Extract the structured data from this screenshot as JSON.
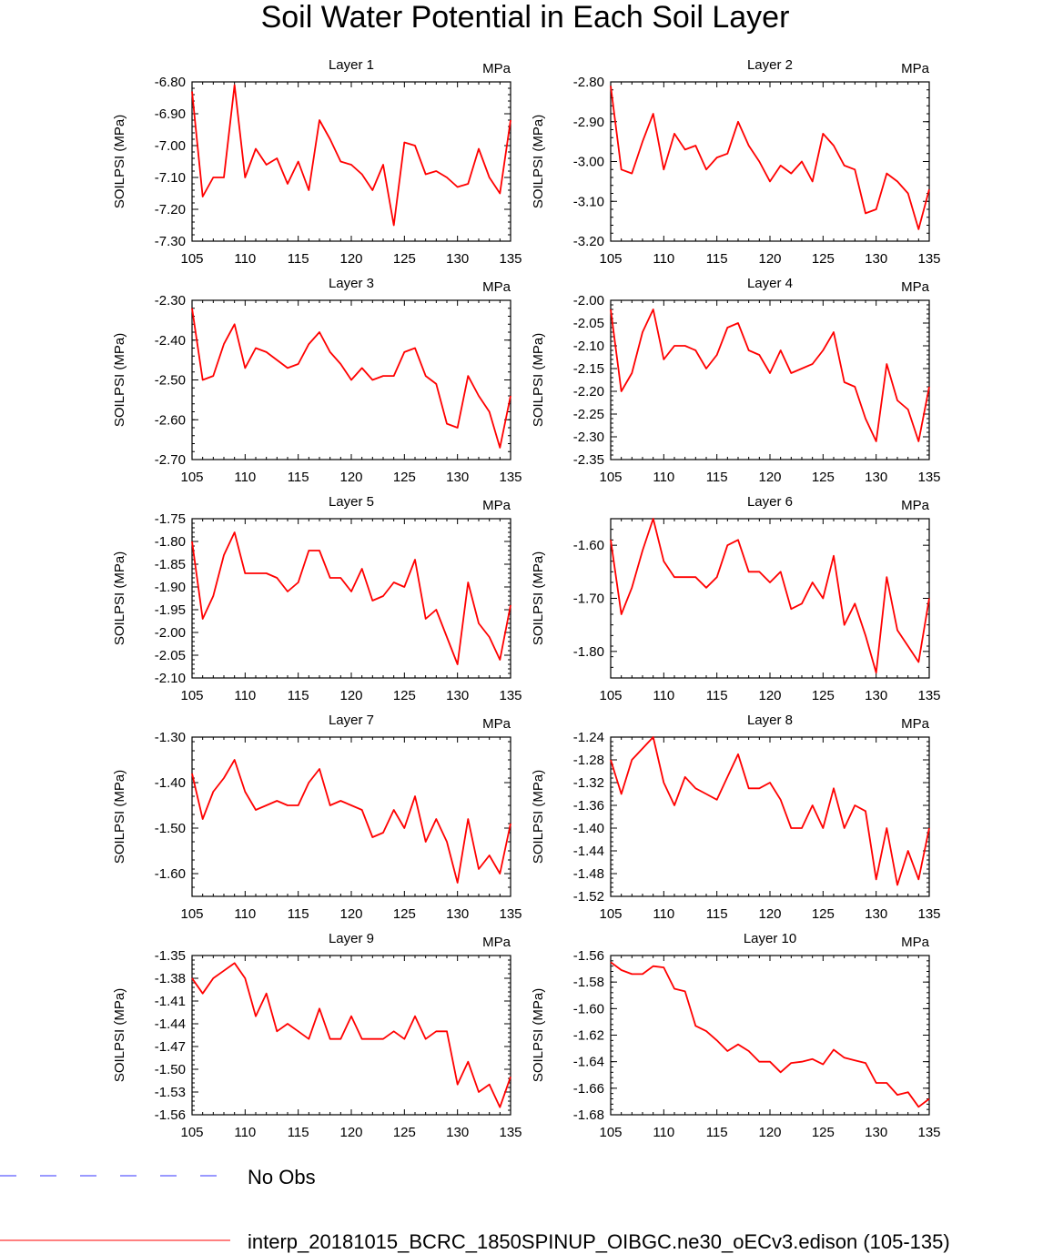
{
  "title": "Soil Water Potential in Each Soil Layer",
  "legend": [
    {
      "label": "No Obs",
      "color": "#3333ff",
      "style": "dashed"
    },
    {
      "label": "interp_20181015_BCRC_1850SPINUP_OIBGC.ne30_oECv3.edison (105-135)",
      "color": "#ff0000",
      "style": "solid"
    }
  ],
  "chart_data": [
    {
      "type": "line",
      "title": "Layer 1",
      "units": "MPa",
      "ylabel": "SOILPSI  (MPa)",
      "xlim": [
        105,
        135
      ],
      "xticks": [
        "105",
        "110",
        "115",
        "120",
        "125",
        "130",
        "135"
      ],
      "ylim": [
        -7.3,
        -6.8
      ],
      "yticks": [
        "-6.80",
        "-6.90",
        "-7.00",
        "-7.10",
        "-7.20",
        "-7.30"
      ],
      "x": [
        105,
        106,
        107,
        108,
        109,
        110,
        111,
        112,
        113,
        114,
        115,
        116,
        117,
        118,
        119,
        120,
        121,
        122,
        123,
        124,
        125,
        126,
        127,
        128,
        129,
        130,
        131,
        132,
        133,
        134,
        135
      ],
      "series": [
        {
          "name": "interp_20181015_BCRC_1850SPINUP_OIBGC.ne30_oECv3.edison (105-135)",
          "color": "#ff0000",
          "values": [
            -6.83,
            -7.16,
            -7.1,
            -7.1,
            -6.81,
            -7.1,
            -7.01,
            -7.06,
            -7.04,
            -7.12,
            -7.05,
            -7.14,
            -6.92,
            -6.98,
            -7.05,
            -7.06,
            -7.09,
            -7.14,
            -7.06,
            -7.25,
            -6.99,
            -7.0,
            -7.09,
            -7.08,
            -7.1,
            -7.13,
            -7.12,
            -7.01,
            -7.1,
            -7.15,
            -6.92
          ]
        }
      ]
    },
    {
      "type": "line",
      "title": "Layer 2",
      "units": "MPa",
      "ylabel": "SOILPSI  (MPa)",
      "xlim": [
        105,
        135
      ],
      "xticks": [
        "105",
        "110",
        "115",
        "120",
        "125",
        "130",
        "135"
      ],
      "ylim": [
        -3.2,
        -2.8
      ],
      "yticks": [
        "-2.80",
        "-2.90",
        "-3.00",
        "-3.10",
        "-3.20"
      ],
      "x": [
        105,
        106,
        107,
        108,
        109,
        110,
        111,
        112,
        113,
        114,
        115,
        116,
        117,
        118,
        119,
        120,
        121,
        122,
        123,
        124,
        125,
        126,
        127,
        128,
        129,
        130,
        131,
        132,
        133,
        134,
        135
      ],
      "series": [
        {
          "name": "interp_20181015_BCRC_1850SPINUP_OIBGC.ne30_oECv3.edison (105-135)",
          "color": "#ff0000",
          "values": [
            -2.81,
            -3.02,
            -3.03,
            -2.95,
            -2.88,
            -3.02,
            -2.93,
            -2.97,
            -2.96,
            -3.02,
            -2.99,
            -2.98,
            -2.9,
            -2.96,
            -3.0,
            -3.05,
            -3.01,
            -3.03,
            -3.0,
            -3.05,
            -2.93,
            -2.96,
            -3.01,
            -3.02,
            -3.13,
            -3.12,
            -3.03,
            -3.05,
            -3.08,
            -3.17,
            -3.07
          ]
        }
      ]
    },
    {
      "type": "line",
      "title": "Layer 3",
      "units": "MPa",
      "ylabel": "SOILPSI  (MPa)",
      "xlim": [
        105,
        135
      ],
      "xticks": [
        "105",
        "110",
        "115",
        "120",
        "125",
        "130",
        "135"
      ],
      "ylim": [
        -2.7,
        -2.3
      ],
      "yticks": [
        "-2.30",
        "-2.40",
        "-2.50",
        "-2.60",
        "-2.70"
      ],
      "x": [
        105,
        106,
        107,
        108,
        109,
        110,
        111,
        112,
        113,
        114,
        115,
        116,
        117,
        118,
        119,
        120,
        121,
        122,
        123,
        124,
        125,
        126,
        127,
        128,
        129,
        130,
        131,
        132,
        133,
        134,
        135
      ],
      "series": [
        {
          "name": "interp_20181015_BCRC_1850SPINUP_OIBGC.ne30_oECv3.edison (105-135)",
          "color": "#ff0000",
          "values": [
            -2.32,
            -2.5,
            -2.49,
            -2.41,
            -2.36,
            -2.47,
            -2.42,
            -2.43,
            -2.45,
            -2.47,
            -2.46,
            -2.41,
            -2.38,
            -2.43,
            -2.46,
            -2.5,
            -2.47,
            -2.5,
            -2.49,
            -2.49,
            -2.43,
            -2.42,
            -2.49,
            -2.51,
            -2.61,
            -2.62,
            -2.49,
            -2.54,
            -2.58,
            -2.67,
            -2.54
          ]
        }
      ]
    },
    {
      "type": "line",
      "title": "Layer 4",
      "units": "MPa",
      "ylabel": "SOILPSI  (MPa)",
      "xlim": [
        105,
        135
      ],
      "xticks": [
        "105",
        "110",
        "115",
        "120",
        "125",
        "130",
        "135"
      ],
      "ylim": [
        -2.35,
        -2.0
      ],
      "yticks": [
        "-2.00",
        "-2.05",
        "-2.10",
        "-2.15",
        "-2.20",
        "-2.25",
        "-2.30",
        "-2.35"
      ],
      "x": [
        105,
        106,
        107,
        108,
        109,
        110,
        111,
        112,
        113,
        114,
        115,
        116,
        117,
        118,
        119,
        120,
        121,
        122,
        123,
        124,
        125,
        126,
        127,
        128,
        129,
        130,
        131,
        132,
        133,
        134,
        135
      ],
      "series": [
        {
          "name": "interp_20181015_BCRC_1850SPINUP_OIBGC.ne30_oECv3.edison (105-135)",
          "color": "#ff0000",
          "values": [
            -2.02,
            -2.2,
            -2.16,
            -2.07,
            -2.02,
            -2.13,
            -2.1,
            -2.1,
            -2.11,
            -2.15,
            -2.12,
            -2.06,
            -2.05,
            -2.11,
            -2.12,
            -2.16,
            -2.11,
            -2.16,
            -2.15,
            -2.14,
            -2.11,
            -2.07,
            -2.18,
            -2.19,
            -2.26,
            -2.31,
            -2.14,
            -2.22,
            -2.24,
            -2.31,
            -2.19
          ]
        }
      ]
    },
    {
      "type": "line",
      "title": "Layer 5",
      "units": "MPa",
      "ylabel": "SOILPSI  (MPa)",
      "xlim": [
        105,
        135
      ],
      "xticks": [
        "105",
        "110",
        "115",
        "120",
        "125",
        "130",
        "135"
      ],
      "ylim": [
        -2.1,
        -1.75
      ],
      "yticks": [
        "-1.75",
        "-1.80",
        "-1.85",
        "-1.90",
        "-1.95",
        "-2.00",
        "-2.05",
        "-2.10"
      ],
      "x": [
        105,
        106,
        107,
        108,
        109,
        110,
        111,
        112,
        113,
        114,
        115,
        116,
        117,
        118,
        119,
        120,
        121,
        122,
        123,
        124,
        125,
        126,
        127,
        128,
        129,
        130,
        131,
        132,
        133,
        134,
        135
      ],
      "series": [
        {
          "name": "interp_20181015_BCRC_1850SPINUP_OIBGC.ne30_oECv3.edison (105-135)",
          "color": "#ff0000",
          "values": [
            -1.8,
            -1.97,
            -1.92,
            -1.83,
            -1.78,
            -1.87,
            -1.87,
            -1.87,
            -1.88,
            -1.91,
            -1.89,
            -1.82,
            -1.82,
            -1.88,
            -1.88,
            -1.91,
            -1.86,
            -1.93,
            -1.92,
            -1.89,
            -1.9,
            -1.84,
            -1.97,
            -1.95,
            -2.01,
            -2.07,
            -1.89,
            -1.98,
            -2.01,
            -2.06,
            -1.94
          ]
        }
      ]
    },
    {
      "type": "line",
      "title": "Layer 6",
      "units": "MPa",
      "ylabel": "SOILPSI  (MPa)",
      "xlim": [
        105,
        135
      ],
      "xticks": [
        "105",
        "110",
        "115",
        "120",
        "125",
        "130",
        "135"
      ],
      "ylim": [
        -1.85,
        -1.55
      ],
      "yticks": [
        "-1.60",
        "-1.70",
        "-1.80"
      ],
      "ytick_values": [
        -1.6,
        -1.7,
        -1.8
      ],
      "x": [
        105,
        106,
        107,
        108,
        109,
        110,
        111,
        112,
        113,
        114,
        115,
        116,
        117,
        118,
        119,
        120,
        121,
        122,
        123,
        124,
        125,
        126,
        127,
        128,
        129,
        130,
        131,
        132,
        133,
        134,
        135
      ],
      "series": [
        {
          "name": "interp_20181015_BCRC_1850SPINUP_OIBGC.ne30_oECv3.edison (105-135)",
          "color": "#ff0000",
          "values": [
            -1.59,
            -1.73,
            -1.68,
            -1.61,
            -1.55,
            -1.63,
            -1.66,
            -1.66,
            -1.66,
            -1.68,
            -1.66,
            -1.6,
            -1.59,
            -1.65,
            -1.65,
            -1.67,
            -1.65,
            -1.72,
            -1.71,
            -1.67,
            -1.7,
            -1.62,
            -1.75,
            -1.71,
            -1.77,
            -1.84,
            -1.66,
            -1.76,
            -1.79,
            -1.82,
            -1.7
          ]
        }
      ]
    },
    {
      "type": "line",
      "title": "Layer 7",
      "units": "MPa",
      "ylabel": "SOILPSI  (MPa)",
      "xlim": [
        105,
        135
      ],
      "xticks": [
        "105",
        "110",
        "115",
        "120",
        "125",
        "130",
        "135"
      ],
      "ylim": [
        -1.65,
        -1.3
      ],
      "yticks": [
        "-1.30",
        "-1.40",
        "-1.50",
        "-1.60"
      ],
      "ytick_values": [
        -1.3,
        -1.4,
        -1.5,
        -1.6
      ],
      "x": [
        105,
        106,
        107,
        108,
        109,
        110,
        111,
        112,
        113,
        114,
        115,
        116,
        117,
        118,
        119,
        120,
        121,
        122,
        123,
        124,
        125,
        126,
        127,
        128,
        129,
        130,
        131,
        132,
        133,
        134,
        135
      ],
      "series": [
        {
          "name": "interp_20181015_BCRC_1850SPINUP_OIBGC.ne30_oECv3.edison (105-135)",
          "color": "#ff0000",
          "values": [
            -1.38,
            -1.48,
            -1.42,
            -1.39,
            -1.35,
            -1.42,
            -1.46,
            -1.45,
            -1.44,
            -1.45,
            -1.45,
            -1.4,
            -1.37,
            -1.45,
            -1.44,
            -1.45,
            -1.46,
            -1.52,
            -1.51,
            -1.46,
            -1.5,
            -1.43,
            -1.53,
            -1.48,
            -1.53,
            -1.62,
            -1.48,
            -1.59,
            -1.56,
            -1.6,
            -1.49
          ]
        }
      ]
    },
    {
      "type": "line",
      "title": "Layer 8",
      "units": "MPa",
      "ylabel": "SOILPSI  (MPa)",
      "xlim": [
        105,
        135
      ],
      "xticks": [
        "105",
        "110",
        "115",
        "120",
        "125",
        "130",
        "135"
      ],
      "ylim": [
        -1.52,
        -1.24
      ],
      "yticks": [
        "-1.24",
        "-1.28",
        "-1.32",
        "-1.36",
        "-1.40",
        "-1.44",
        "-1.48",
        "-1.52"
      ],
      "x": [
        105,
        106,
        107,
        108,
        109,
        110,
        111,
        112,
        113,
        114,
        115,
        116,
        117,
        118,
        119,
        120,
        121,
        122,
        123,
        124,
        125,
        126,
        127,
        128,
        129,
        130,
        131,
        132,
        133,
        134,
        135
      ],
      "series": [
        {
          "name": "interp_20181015_BCRC_1850SPINUP_OIBGC.ne30_oECv3.edison (105-135)",
          "color": "#ff0000",
          "values": [
            -1.28,
            -1.34,
            -1.28,
            -1.26,
            -1.24,
            -1.32,
            -1.36,
            -1.31,
            -1.33,
            -1.34,
            -1.35,
            -1.31,
            -1.27,
            -1.33,
            -1.33,
            -1.32,
            -1.35,
            -1.4,
            -1.4,
            -1.36,
            -1.4,
            -1.33,
            -1.4,
            -1.36,
            -1.37,
            -1.49,
            -1.4,
            -1.5,
            -1.44,
            -1.49,
            -1.4
          ]
        }
      ]
    },
    {
      "type": "line",
      "title": "Layer 9",
      "units": "MPa",
      "ylabel": "SOILPSI  (MPa)",
      "xlim": [
        105,
        135
      ],
      "xticks": [
        "105",
        "110",
        "115",
        "120",
        "125",
        "130",
        "135"
      ],
      "ylim": [
        -1.56,
        -1.35
      ],
      "yticks": [
        "-1.35",
        "-1.38",
        "-1.41",
        "-1.44",
        "-1.47",
        "-1.50",
        "-1.53",
        "-1.56"
      ],
      "x": [
        105,
        106,
        107,
        108,
        109,
        110,
        111,
        112,
        113,
        114,
        115,
        116,
        117,
        118,
        119,
        120,
        121,
        122,
        123,
        124,
        125,
        126,
        127,
        128,
        129,
        130,
        131,
        132,
        133,
        134,
        135
      ],
      "series": [
        {
          "name": "interp_20181015_BCRC_1850SPINUP_OIBGC.ne30_oECv3.edison (105-135)",
          "color": "#ff0000",
          "values": [
            -1.38,
            -1.4,
            -1.38,
            -1.37,
            -1.36,
            -1.38,
            -1.43,
            -1.4,
            -1.45,
            -1.44,
            -1.45,
            -1.46,
            -1.42,
            -1.46,
            -1.46,
            -1.43,
            -1.46,
            -1.46,
            -1.46,
            -1.45,
            -1.46,
            -1.43,
            -1.46,
            -1.45,
            -1.45,
            -1.52,
            -1.49,
            -1.53,
            -1.52,
            -1.55,
            -1.51
          ]
        }
      ]
    },
    {
      "type": "line",
      "title": "Layer 10",
      "units": "MPa",
      "ylabel": "SOILPSI  (MPa)",
      "xlim": [
        105,
        135
      ],
      "xticks": [
        "105",
        "110",
        "115",
        "120",
        "125",
        "130",
        "135"
      ],
      "ylim": [
        -1.68,
        -1.56
      ],
      "yticks": [
        "-1.56",
        "-1.58",
        "-1.60",
        "-1.62",
        "-1.64",
        "-1.66",
        "-1.68"
      ],
      "x": [
        105,
        106,
        107,
        108,
        109,
        110,
        111,
        112,
        113,
        114,
        115,
        116,
        117,
        118,
        119,
        120,
        121,
        122,
        123,
        124,
        125,
        126,
        127,
        128,
        129,
        130,
        131,
        132,
        133,
        134,
        135
      ],
      "series": [
        {
          "name": "interp_20181015_BCRC_1850SPINUP_OIBGC.ne30_oECv3.edison (105-135)",
          "color": "#ff0000",
          "values": [
            -1.565,
            -1.571,
            -1.574,
            -1.574,
            -1.568,
            -1.569,
            -1.585,
            -1.587,
            -1.613,
            -1.617,
            -1.624,
            -1.632,
            -1.627,
            -1.632,
            -1.64,
            -1.64,
            -1.648,
            -1.641,
            -1.64,
            -1.638,
            -1.642,
            -1.631,
            -1.637,
            -1.639,
            -1.641,
            -1.656,
            -1.656,
            -1.665,
            -1.663,
            -1.674,
            -1.668
          ]
        }
      ]
    }
  ]
}
